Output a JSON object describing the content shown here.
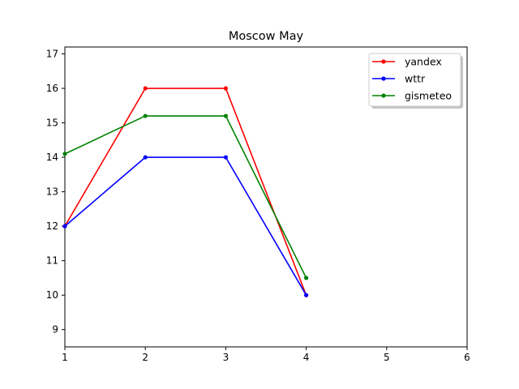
{
  "chart_data": {
    "type": "line",
    "title": "Moscow May",
    "xlabel": "",
    "ylabel": "",
    "xlim": [
      1,
      6
    ],
    "ylim": [
      8.5,
      17.2
    ],
    "xticks": [
      1,
      2,
      3,
      4,
      5,
      6
    ],
    "yticks": [
      9,
      10,
      11,
      12,
      13,
      14,
      15,
      16,
      17
    ],
    "grid": false,
    "legend_position": "top-right",
    "x": [
      1,
      2,
      3,
      4
    ],
    "series": [
      {
        "name": "yandex",
        "color": "#ff0000",
        "values": [
          12,
          16,
          16,
          10
        ]
      },
      {
        "name": "wttr",
        "color": "#0000ff",
        "values": [
          12,
          14,
          14,
          10
        ]
      },
      {
        "name": "gismeteo",
        "color": "#008000",
        "values": [
          14.1,
          15.2,
          15.2,
          10.5
        ]
      }
    ]
  }
}
